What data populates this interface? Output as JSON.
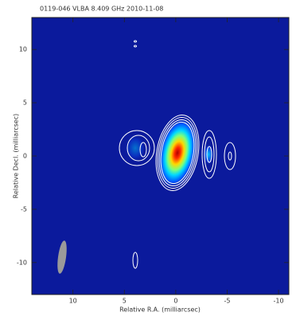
{
  "chart_data": {
    "type": "image",
    "title": "0119-046   VLBA   8.409 GHz   2010-11-08",
    "x_label": "Relative R.A. (milliarcsec)",
    "y_label": "Relative Decl. (milliarcsec)",
    "xlim": [
      14,
      -11
    ],
    "ylim": [
      -13,
      13
    ],
    "xticks": [
      10,
      5,
      0,
      -5,
      -10
    ],
    "yticks": [
      10,
      5,
      0,
      -5,
      -10
    ]
  }
}
